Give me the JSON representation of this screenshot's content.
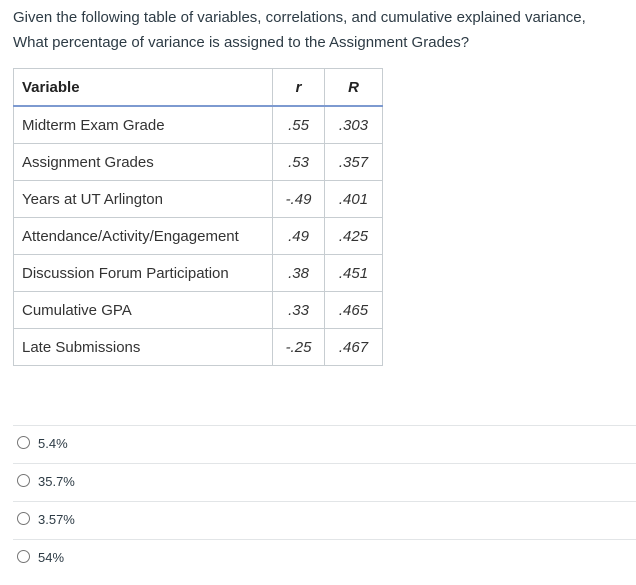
{
  "question": {
    "lines": [
      "Given the following table of variables, correlations, and cumulative explained variance,",
      "What percentage of variance is assigned to the Assignment Grades?"
    ]
  },
  "table": {
    "headers": [
      "Variable",
      "r",
      "R"
    ],
    "rows": [
      [
        "Midterm Exam Grade",
        ".55",
        ".303"
      ],
      [
        "Assignment Grades",
        ".53",
        ".357"
      ],
      [
        "Years at UT Arlington",
        "-.49",
        ".401"
      ],
      [
        "Attendance/Activity/Engagement",
        ".49",
        ".425"
      ],
      [
        "Discussion Forum Participation",
        ".38",
        ".451"
      ],
      [
        "Cumulative GPA",
        ".33",
        ".465"
      ],
      [
        "Late Submissions",
        "-.25",
        ".467"
      ]
    ]
  },
  "options": [
    "5.4%",
    "35.7%",
    "3.57%",
    "54%"
  ]
}
